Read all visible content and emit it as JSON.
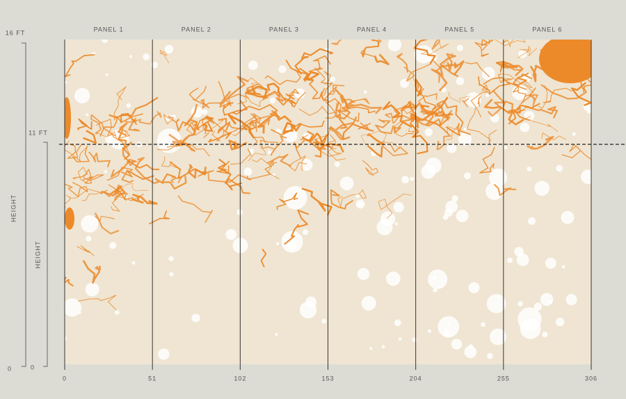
{
  "panels": [
    "PANEL 1",
    "PANEL 2",
    "PANEL 3",
    "PANEL 4",
    "PANEL 5",
    "PANEL 6"
  ],
  "width_marks": [
    "0",
    "51",
    "102",
    "153",
    "204",
    "255",
    "306"
  ],
  "wall_scale": {
    "top": "16 FT",
    "bottom": "0",
    "label": "HEIGHT"
  },
  "mural_scale": {
    "top": "11 FT",
    "bottom": "0",
    "label": "HEIGHT"
  }
}
